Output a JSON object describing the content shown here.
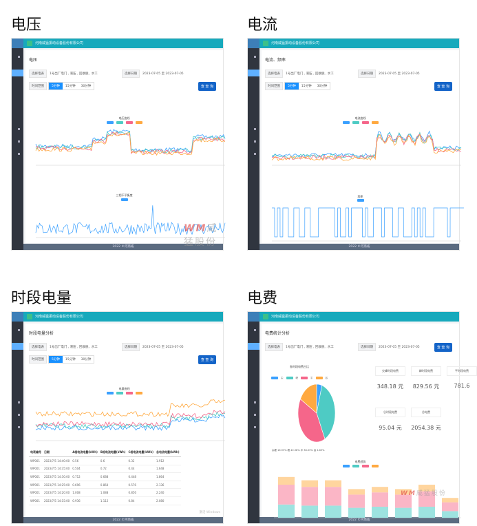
{
  "captions": [
    "电压",
    "电流",
    "时段电量",
    "电费"
  ],
  "company": "河南威猛振动设备股份有限公司",
  "footer": "2022 ©河南威",
  "filter": {
    "meter_label": "选择电表",
    "meter_value": "1号出厂电门 , 液压 , 回收脱 , 水工",
    "date_label": "选择日期",
    "date_value": "2023-07-05 至 2023-07-05",
    "range_label": "时间范围",
    "ranges": [
      "5分钟",
      "15分钟",
      "30分钟"
    ],
    "query": "查 查 询"
  },
  "pages": {
    "voltage": {
      "title": "电压",
      "chart1_title": "电压曲线",
      "chart2_title": "三相不平衡度"
    },
    "current": {
      "title": "电流、频率",
      "chart1_title": "电流曲线",
      "chart2_title": "频率"
    },
    "period": {
      "title": "时段电量分析",
      "chart_title": "电量曲线",
      "table": {
        "headers": [
          "电表编号",
          "日期",
          "A相电流电量(kWh)",
          "B相电流电量(kWh)",
          "C相电流电量(kWh)",
          "总电流电量(kWh)"
        ],
        "rows": [
          [
            "WP001",
            "2023/7/5 14:40:00",
            "0.56",
            "0.6",
            "0.32",
            "1.912"
          ],
          [
            "WP001",
            "2023/7/5 14:35:00",
            "0.504",
            "0.72",
            "0.44",
            "1.648"
          ],
          [
            "WP001",
            "2023/7/5 14:30:00",
            "0.712",
            "0.688",
            "0.448",
            "1.864"
          ],
          [
            "WP001",
            "2023/7/5 14:25:00",
            "0.696",
            "0.864",
            "0.576",
            "2.136"
          ],
          [
            "WP001",
            "2023/7/5 14:20:00",
            "1.008",
            "1.088",
            "0.856",
            "2.240"
          ],
          [
            "WP001",
            "2023/7/5 14:15:00",
            "0.936",
            "1.112",
            "0.84",
            "2.080"
          ]
        ]
      }
    },
    "fee": {
      "title": "电费统计分析",
      "pie_title": "各时段电费占比",
      "pie_legend": [
        "尖",
        "峰",
        "平",
        "谷"
      ],
      "pie_note": "尖峰 16.93% 峰 40.38% 平 38.03% 谷 4.63%",
      "stats": [
        {
          "label": "尖峰时段电费",
          "value": "348.18 元"
        },
        {
          "label": "峰时段电费",
          "value": "829.56 元"
        },
        {
          "label": "平时段电费",
          "value": "781.6"
        },
        {
          "label": "谷时段电费",
          "value": "95.04 元"
        },
        {
          "label": "总电费",
          "value": "2054.38 元"
        }
      ],
      "bar_title": "电费趋势"
    }
  },
  "colors": {
    "blue": "#3aa0ff",
    "teal": "#4ecbc4",
    "pink": "#f5668a",
    "orange": "#ffa940",
    "header": "#17a9bc",
    "sidebar": "#30353f"
  },
  "pie_values": [
    4.63,
    38.03,
    40.38,
    16.93
  ],
  "bar_stacks": [
    [
      12,
      18,
      7
    ],
    [
      11,
      17,
      6
    ],
    [
      11,
      17,
      6
    ],
    [
      9,
      12,
      5
    ],
    [
      10,
      13,
      5
    ],
    [
      9,
      12,
      5
    ],
    [
      10,
      14,
      6
    ],
    [
      6,
      8,
      4
    ]
  ],
  "watermark": "威猛股份",
  "windows_note": "激活 Windows"
}
